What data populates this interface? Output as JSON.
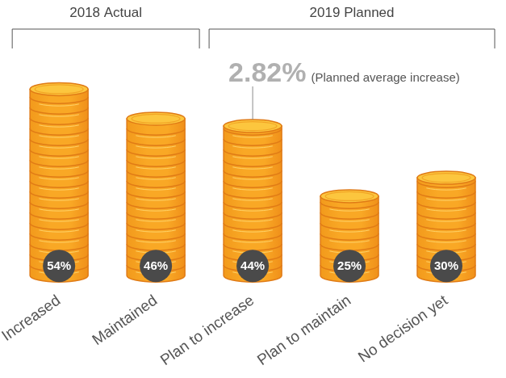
{
  "chart_data": {
    "type": "bar",
    "categories": [
      "Increased",
      "Maintained",
      "Plan to increase",
      "Plan to maintain",
      "No decision yet"
    ],
    "values": [
      54,
      46,
      44,
      25,
      30
    ],
    "value_labels": [
      "54%",
      "46%",
      "44%",
      "25%",
      "30%"
    ],
    "color": "#f9a825",
    "ylim": [
      0,
      60
    ],
    "grid": false,
    "data_labels": true,
    "tick_labels": "x",
    "groups": [
      {
        "label": "2018 Actual",
        "categories": [
          "Increased",
          "Maintained"
        ]
      },
      {
        "label": "2019 Planned",
        "categories": [
          "Plan to increase",
          "Plan to maintain",
          "No decision yet"
        ]
      }
    ],
    "annotations": [
      {
        "category": "Plan to increase",
        "label": "2.82%",
        "text": "(Planned average increase)"
      }
    ]
  }
}
